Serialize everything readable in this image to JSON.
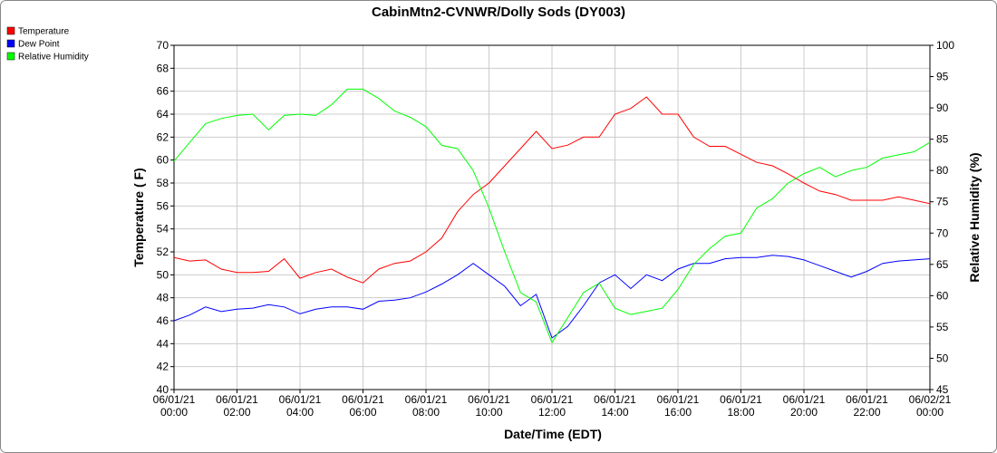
{
  "chart_data": {
    "type": "line",
    "title": "CabinMtn2-CVNWR/Dolly Sods (DY003)",
    "x_label": "Date/Time (EDT)",
    "y_label": "Temperature ( F)",
    "y2_label": "Relative Humidity (%)",
    "x": [
      "06/01/21 00:00",
      "06/01/21 00:30",
      "06/01/21 01:00",
      "06/01/21 01:30",
      "06/01/21 02:00",
      "06/01/21 02:30",
      "06/01/21 03:00",
      "06/01/21 03:30",
      "06/01/21 04:00",
      "06/01/21 04:30",
      "06/01/21 05:00",
      "06/01/21 05:30",
      "06/01/21 06:00",
      "06/01/21 06:30",
      "06/01/21 07:00",
      "06/01/21 07:30",
      "06/01/21 08:00",
      "06/01/21 08:30",
      "06/01/21 09:00",
      "06/01/21 09:30",
      "06/01/21 10:00",
      "06/01/21 10:30",
      "06/01/21 11:00",
      "06/01/21 11:30",
      "06/01/21 12:00",
      "06/01/21 12:30",
      "06/01/21 13:00",
      "06/01/21 13:30",
      "06/01/21 14:00",
      "06/01/21 14:30",
      "06/01/21 15:00",
      "06/01/21 15:30",
      "06/01/21 16:00",
      "06/01/21 16:30",
      "06/01/21 17:00",
      "06/01/21 17:30",
      "06/01/21 18:00",
      "06/01/21 18:30",
      "06/01/21 19:00",
      "06/01/21 19:30",
      "06/01/21 20:00",
      "06/01/21 20:30",
      "06/01/21 21:00",
      "06/01/21 21:30",
      "06/01/21 22:00",
      "06/01/21 22:30",
      "06/01/21 23:00",
      "06/01/21 23:30",
      "06/02/21 00:00"
    ],
    "xlim": [
      "06/01/21 00:00",
      "06/02/21 00:00"
    ],
    "xticks": [
      "06/01/21 00:00",
      "06/01/21 02:00",
      "06/01/21 04:00",
      "06/01/21 06:00",
      "06/01/21 08:00",
      "06/01/21 10:00",
      "06/01/21 12:00",
      "06/01/21 14:00",
      "06/01/21 16:00",
      "06/01/21 18:00",
      "06/01/21 20:00",
      "06/01/21 22:00",
      "06/02/21 00:00"
    ],
    "ylim": [
      40,
      70
    ],
    "yticks": [
      40,
      42,
      44,
      46,
      48,
      50,
      52,
      54,
      56,
      58,
      60,
      62,
      64,
      66,
      68,
      70
    ],
    "y2lim": [
      45,
      100
    ],
    "y2ticks": [
      45,
      50,
      55,
      60,
      65,
      70,
      75,
      80,
      85,
      90,
      95,
      100
    ],
    "grid": true,
    "legend": "top-left",
    "series": [
      {
        "name": "Temperature",
        "color": "#ff0000",
        "values": [
          51.5,
          51.2,
          51.3,
          50.5,
          50.2,
          50.2,
          50.3,
          51.4,
          49.7,
          50.2,
          50.5,
          49.8,
          49.3,
          50.5,
          51.0,
          51.2,
          52.0,
          53.2,
          55.5,
          57.0,
          58.0,
          59.5,
          61.0,
          62.5,
          61.0,
          61.3,
          62.0,
          62.0,
          64.0,
          64.5,
          65.5,
          64.0,
          64.0,
          62.0,
          61.2,
          61.2,
          60.5,
          59.8,
          59.5,
          58.8,
          58.0,
          57.3,
          57.0,
          56.5,
          56.5,
          56.5,
          56.8,
          56.5,
          56.2
        ]
      },
      {
        "name": "Dew Point",
        "color": "#0000ff",
        "values": [
          46.0,
          46.5,
          47.2,
          46.8,
          47.0,
          47.1,
          47.4,
          47.2,
          46.6,
          47.0,
          47.2,
          47.2,
          47.0,
          47.7,
          47.8,
          48.0,
          48.5,
          49.2,
          50.0,
          51.0,
          50.0,
          49.0,
          47.3,
          48.3,
          44.5,
          45.5,
          47.3,
          49.3,
          50.0,
          48.8,
          50.0,
          49.5,
          50.5,
          51.0,
          51.0,
          51.4,
          51.5,
          51.5,
          51.7,
          51.6,
          51.3,
          50.8,
          50.3,
          49.8,
          50.3,
          51.0,
          51.2,
          51.3,
          51.4
        ]
      },
      {
        "name": "Relative Humidity",
        "color": "#00ff00",
        "axis": "y2",
        "values": [
          81.5,
          84.5,
          87.5,
          88.3,
          88.8,
          89.0,
          86.5,
          88.8,
          89.0,
          88.8,
          90.5,
          93.0,
          93.0,
          91.5,
          89.5,
          88.5,
          87.0,
          84.0,
          83.5,
          80.0,
          74.0,
          67.0,
          60.5,
          59.0,
          52.5,
          56.5,
          60.5,
          62.0,
          58.0,
          57.0,
          57.5,
          58.0,
          61.0,
          65.0,
          67.5,
          69.5,
          70.0,
          74.0,
          75.5,
          78.0,
          79.5,
          80.5,
          79.0,
          80.0,
          80.5,
          82.0,
          82.5,
          83.0,
          84.5
        ]
      }
    ]
  }
}
